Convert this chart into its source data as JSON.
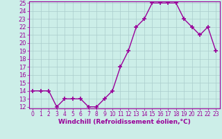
{
  "x": [
    0,
    1,
    2,
    3,
    4,
    5,
    6,
    7,
    8,
    9,
    10,
    11,
    12,
    13,
    14,
    15,
    16,
    17,
    18,
    19,
    20,
    21,
    22,
    23
  ],
  "y": [
    14,
    14,
    14,
    12,
    13,
    13,
    13,
    12,
    12,
    13,
    14,
    17,
    19,
    22,
    23,
    25,
    25,
    25,
    25,
    23,
    22,
    21,
    22,
    19
  ],
  "line_color": "#990099",
  "marker": "+",
  "bg_color": "#cceee8",
  "plot_bg_color": "#cceee8",
  "grid_color": "#aacccc",
  "xlabel": "Windchill (Refroidissement éolien,°C)",
  "ylabel": "",
  "ylim": [
    12,
    25
  ],
  "xlim": [
    -0.5,
    23.5
  ],
  "yticks": [
    12,
    13,
    14,
    15,
    16,
    17,
    18,
    19,
    20,
    21,
    22,
    23,
    24,
    25
  ],
  "xticks": [
    0,
    1,
    2,
    3,
    4,
    5,
    6,
    7,
    8,
    9,
    10,
    11,
    12,
    13,
    14,
    15,
    16,
    17,
    18,
    19,
    20,
    21,
    22,
    23
  ],
  "axis_label_color": "#990099",
  "tick_color": "#990099",
  "border_color": "#990099",
  "xlabel_fontsize": 6.5,
  "ytick_fontsize": 6,
  "xtick_fontsize": 5.5
}
